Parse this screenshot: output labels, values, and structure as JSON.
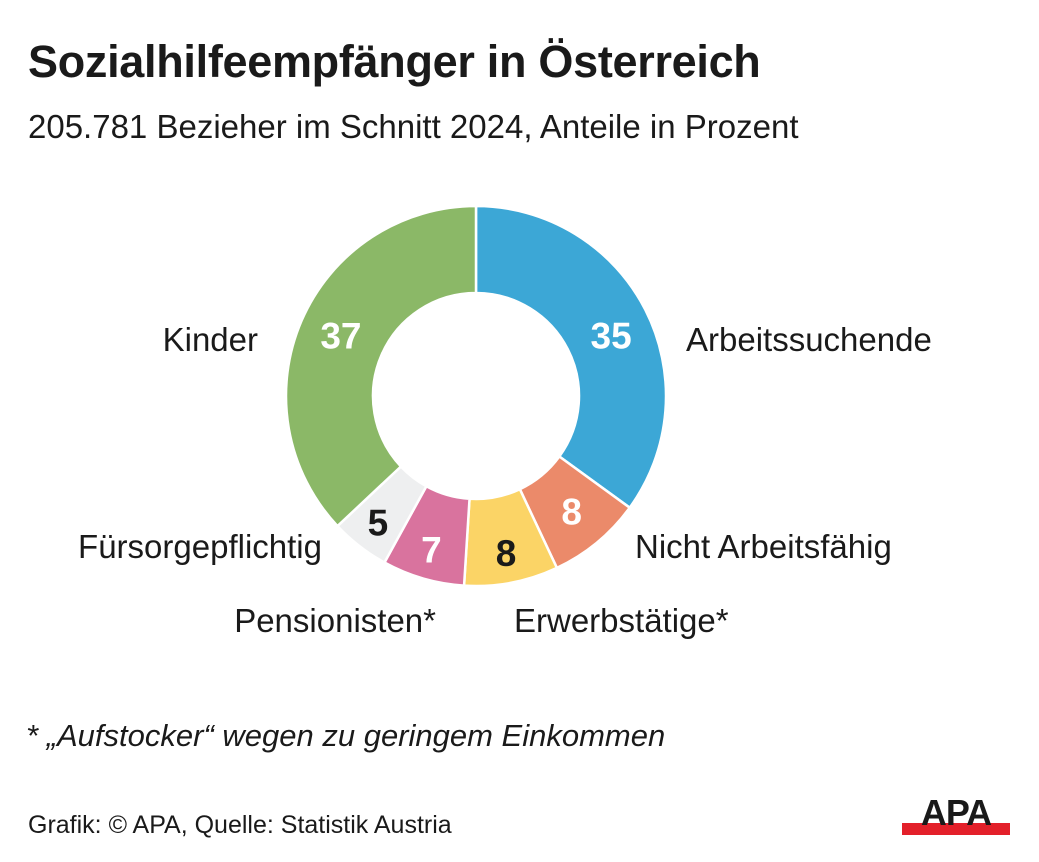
{
  "header": {
    "title": "Sozialhilfeempfänger in Österreich",
    "subtitle": "205.781 Bezieher im Schnitt 2024, Anteile in Prozent"
  },
  "chart_data": {
    "type": "pie",
    "variant": "donut",
    "unit": "Prozent",
    "start": "top",
    "direction": "clockwise",
    "slices": [
      {
        "label": "Arbeitssuchende",
        "value": 35,
        "display": "35",
        "color": "#3ca7d6",
        "text_color": "#ffffff"
      },
      {
        "label": "Nicht Arbeitsfähig",
        "value": 8,
        "display": "8",
        "color": "#eb8a6a",
        "text_color": "#ffffff"
      },
      {
        "label": "Erwerbstätige*",
        "value": 8,
        "display": "8",
        "color": "#fbd466",
        "text_color": "#1a1a1a"
      },
      {
        "label": "Pensionisten*",
        "value": 7,
        "display": "7",
        "color": "#d9739e",
        "text_color": "#ffffff"
      },
      {
        "label": "Fürsorgepflichtig",
        "value": 5,
        "display": "5",
        "color": "#eeeff0",
        "text_color": "#1a1a1a"
      },
      {
        "label": "Kinder",
        "value": 37,
        "display": "37",
        "color": "#8bb867",
        "text_color": "#ffffff"
      }
    ]
  },
  "footnote": "* „Aufstocker“ wegen zu geringem Einkommen",
  "source": "Grafik: © APA, Quelle: Statistik Austria",
  "logo": {
    "text": "APA",
    "bar_color": "#e3202a"
  }
}
